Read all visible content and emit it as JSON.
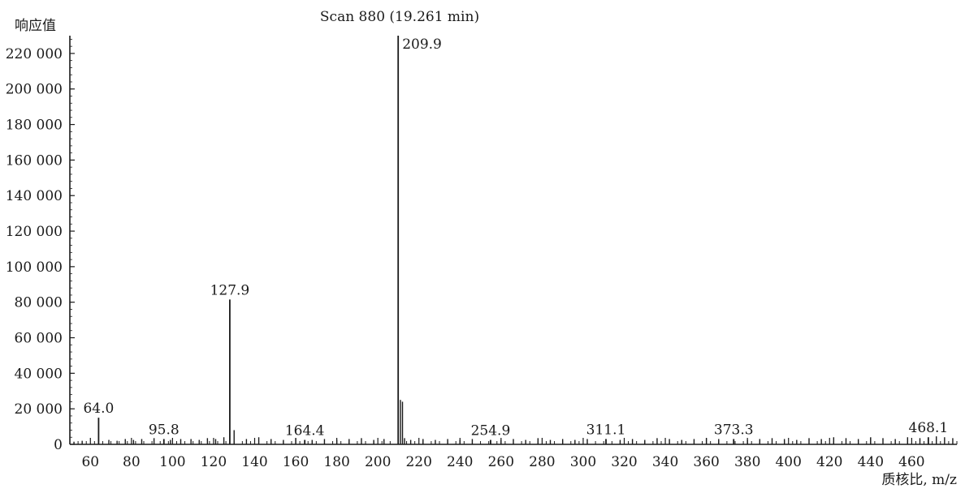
{
  "chart_data": {
    "type": "bar",
    "title": "Scan 880 (19.261 min)",
    "ylabel": "响应值",
    "xlabel": "质核比, m/z",
    "xlim": [
      50,
      482
    ],
    "ylim": [
      0,
      230000
    ],
    "x_ticks": [
      60,
      80,
      100,
      120,
      140,
      160,
      180,
      200,
      220,
      240,
      260,
      280,
      300,
      320,
      340,
      360,
      380,
      400,
      420,
      440,
      460
    ],
    "y_ticks": [
      0,
      20000,
      40000,
      60000,
      80000,
      100000,
      120000,
      140000,
      160000,
      180000,
      200000,
      220000
    ],
    "y_tick_labels": [
      "0",
      "20 000",
      "40 000",
      "60 000",
      "80 000",
      "100 000",
      "120 000",
      "140 000",
      "160 000",
      "180 000",
      "200 000",
      "220 000"
    ],
    "grid": false,
    "color": "#1a1a1a",
    "peaks": [
      {
        "mz": 64.0,
        "intensity": 15000,
        "label": "64.0"
      },
      {
        "mz": 95.8,
        "intensity": 3000,
        "label": "95.8"
      },
      {
        "mz": 127.9,
        "intensity": 81500,
        "label": "127.9"
      },
      {
        "mz": 164.4,
        "intensity": 2500,
        "label": "164.4"
      },
      {
        "mz": 209.9,
        "intensity": 230000,
        "label": "209.9"
      },
      {
        "mz": 254.9,
        "intensity": 2500,
        "label": "254.9"
      },
      {
        "mz": 311.1,
        "intensity": 3000,
        "label": "311.1"
      },
      {
        "mz": 373.3,
        "intensity": 3000,
        "label": "373.3"
      },
      {
        "mz": 468.1,
        "intensity": 4000,
        "label": "468.1"
      }
    ],
    "minor_peaks": [
      {
        "mz": 52,
        "intensity": 1500
      },
      {
        "mz": 56,
        "intensity": 2000
      },
      {
        "mz": 69,
        "intensity": 2500
      },
      {
        "mz": 73,
        "intensity": 2000
      },
      {
        "mz": 77,
        "intensity": 3000
      },
      {
        "mz": 81,
        "intensity": 2500
      },
      {
        "mz": 85,
        "intensity": 3000
      },
      {
        "mz": 91,
        "intensity": 3500
      },
      {
        "mz": 99,
        "intensity": 2500
      },
      {
        "mz": 104,
        "intensity": 3000
      },
      {
        "mz": 109,
        "intensity": 3000
      },
      {
        "mz": 113,
        "intensity": 2500
      },
      {
        "mz": 117,
        "intensity": 3500
      },
      {
        "mz": 121,
        "intensity": 3000
      },
      {
        "mz": 125,
        "intensity": 4000
      },
      {
        "mz": 130,
        "intensity": 8000
      },
      {
        "mz": 136,
        "intensity": 3000
      },
      {
        "mz": 142,
        "intensity": 4000
      },
      {
        "mz": 148,
        "intensity": 3000
      },
      {
        "mz": 154,
        "intensity": 2500
      },
      {
        "mz": 160,
        "intensity": 3500
      },
      {
        "mz": 168,
        "intensity": 2500
      },
      {
        "mz": 174,
        "intensity": 3000
      },
      {
        "mz": 180,
        "intensity": 2500
      },
      {
        "mz": 186,
        "intensity": 3000
      },
      {
        "mz": 192,
        "intensity": 3500
      },
      {
        "mz": 198,
        "intensity": 2500
      },
      {
        "mz": 203,
        "intensity": 3000
      },
      {
        "mz": 211,
        "intensity": 25000
      },
      {
        "mz": 212,
        "intensity": 24000
      },
      {
        "mz": 213,
        "intensity": 3500
      },
      {
        "mz": 216,
        "intensity": 2500
      },
      {
        "mz": 222,
        "intensity": 3000
      },
      {
        "mz": 228,
        "intensity": 2500
      },
      {
        "mz": 234,
        "intensity": 3000
      },
      {
        "mz": 240,
        "intensity": 2500
      },
      {
        "mz": 246,
        "intensity": 3000
      },
      {
        "mz": 260,
        "intensity": 2500
      },
      {
        "mz": 266,
        "intensity": 3000
      },
      {
        "mz": 272,
        "intensity": 2500
      },
      {
        "mz": 278,
        "intensity": 3500
      },
      {
        "mz": 284,
        "intensity": 2500
      },
      {
        "mz": 290,
        "intensity": 3000
      },
      {
        "mz": 296,
        "intensity": 2500
      },
      {
        "mz": 302,
        "intensity": 3000
      },
      {
        "mz": 318,
        "intensity": 2500
      },
      {
        "mz": 324,
        "intensity": 3000
      },
      {
        "mz": 330,
        "intensity": 2500
      },
      {
        "mz": 336,
        "intensity": 3500
      },
      {
        "mz": 342,
        "intensity": 3000
      },
      {
        "mz": 348,
        "intensity": 2500
      },
      {
        "mz": 354,
        "intensity": 3000
      },
      {
        "mz": 360,
        "intensity": 3500
      },
      {
        "mz": 366,
        "intensity": 3000
      },
      {
        "mz": 380,
        "intensity": 2500
      },
      {
        "mz": 386,
        "intensity": 3000
      },
      {
        "mz": 392,
        "intensity": 3500
      },
      {
        "mz": 398,
        "intensity": 3000
      },
      {
        "mz": 404,
        "intensity": 2500
      },
      {
        "mz": 410,
        "intensity": 3500
      },
      {
        "mz": 416,
        "intensity": 3000
      },
      {
        "mz": 422,
        "intensity": 4000
      },
      {
        "mz": 428,
        "intensity": 3500
      },
      {
        "mz": 434,
        "intensity": 3000
      },
      {
        "mz": 440,
        "intensity": 4000
      },
      {
        "mz": 446,
        "intensity": 3500
      },
      {
        "mz": 452,
        "intensity": 3000
      },
      {
        "mz": 458,
        "intensity": 4000
      },
      {
        "mz": 464,
        "intensity": 3500
      },
      {
        "mz": 472,
        "intensity": 4500
      },
      {
        "mz": 476,
        "intensity": 4000
      },
      {
        "mz": 480,
        "intensity": 3500
      }
    ]
  }
}
